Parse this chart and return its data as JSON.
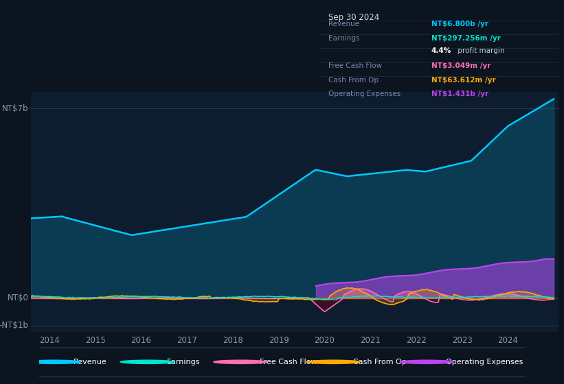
{
  "bg_color": "#0c1420",
  "chart_bg": "#0d1c2e",
  "revenue_color": "#00c8ff",
  "earnings_color": "#00e5cc",
  "fcf_color": "#ff6eb4",
  "cashfromop_color": "#ffaa00",
  "opex_color": "#bb44ee",
  "legend": [
    {
      "label": "Revenue",
      "color": "#00c8ff"
    },
    {
      "label": "Earnings",
      "color": "#00e5cc"
    },
    {
      "label": "Free Cash Flow",
      "color": "#ff6eb4"
    },
    {
      "label": "Cash From Op",
      "color": "#ffaa00"
    },
    {
      "label": "Operating Expenses",
      "color": "#bb44ee"
    }
  ]
}
